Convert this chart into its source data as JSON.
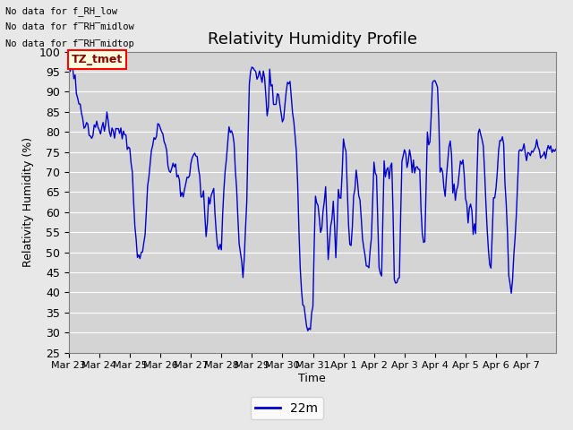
{
  "title": "Relativity Humidity Profile",
  "ylabel": "Relativity Humidity (%)",
  "xlabel": "Time",
  "legend_label": "22m",
  "line_color": "#0000cc",
  "fig_facecolor": "#e8e8e8",
  "plot_bg_color": "#d4d4d4",
  "ylim": [
    25,
    100
  ],
  "yticks": [
    25,
    30,
    35,
    40,
    45,
    50,
    55,
    60,
    65,
    70,
    75,
    80,
    85,
    90,
    95,
    100
  ],
  "xticklabels": [
    "Mar 23",
    "Mar 24",
    "Mar 25",
    "Mar 26",
    "Mar 27",
    "Mar 28",
    "Mar 29",
    "Mar 30",
    "Mar 31",
    "Apr 1",
    "Apr 2",
    "Apr 3",
    "Apr 4",
    "Apr 5",
    "Apr 6",
    "Apr 7"
  ],
  "annotations_text": [
    "No data for f_RH_low",
    "No data for f̅RH̅midlow",
    "No data for f̅RH̅midtop"
  ],
  "annotations_raw": [
    "No data for f_RH_low",
    "No data for f RH midlow",
    "No data for f RH midtop"
  ],
  "tz_label": "TZ_tmet",
  "figsize": [
    6.4,
    4.8
  ],
  "dpi": 100
}
